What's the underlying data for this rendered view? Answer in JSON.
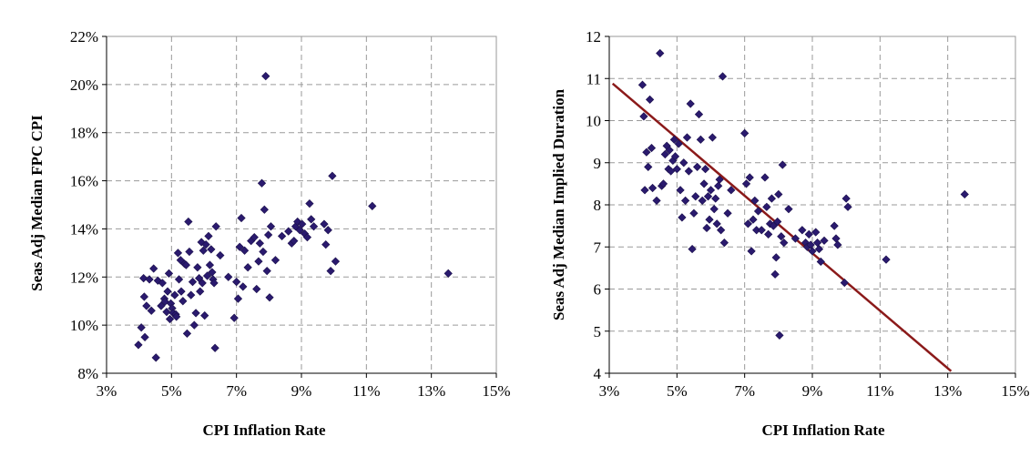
{
  "chart_data": [
    {
      "type": "scatter",
      "title": "",
      "xlabel": "CPI Inflation Rate",
      "ylabel": "Seas Adj Median FPC CPI",
      "xlim": [
        0.03,
        0.15
      ],
      "ylim": [
        0.08,
        0.22
      ],
      "xticks": [
        0.03,
        0.05,
        0.07,
        0.09,
        0.11,
        0.13,
        0.15
      ],
      "yticks": [
        0.08,
        0.1,
        0.12,
        0.14,
        0.16,
        0.18,
        0.2,
        0.22
      ],
      "xtick_labels": [
        "3%",
        "5%",
        "7%",
        "9%",
        "11%",
        "13%",
        "15%"
      ],
      "ytick_labels": [
        "8%",
        "10%",
        "12%",
        "14%",
        "16%",
        "18%",
        "20%",
        "22%"
      ],
      "grid": true,
      "marker_color": "#2a1a6e",
      "points": [
        [
          0.0398,
          0.0918
        ],
        [
          0.0407,
          0.099
        ],
        [
          0.0414,
          0.1195
        ],
        [
          0.0416,
          0.1118
        ],
        [
          0.0418,
          0.095
        ],
        [
          0.0423,
          0.108
        ],
        [
          0.0432,
          0.119
        ],
        [
          0.0438,
          0.106
        ],
        [
          0.0445,
          0.1235
        ],
        [
          0.0452,
          0.0865
        ],
        [
          0.0458,
          0.1185
        ],
        [
          0.0468,
          0.108
        ],
        [
          0.0472,
          0.1175
        ],
        [
          0.0478,
          0.111
        ],
        [
          0.048,
          0.1098
        ],
        [
          0.0485,
          0.1055
        ],
        [
          0.0488,
          0.114
        ],
        [
          0.0492,
          0.1215
        ],
        [
          0.0495,
          0.1025
        ],
        [
          0.0498,
          0.109
        ],
        [
          0.0502,
          0.107
        ],
        [
          0.0505,
          0.105
        ],
        [
          0.051,
          0.1125
        ],
        [
          0.0513,
          0.1045
        ],
        [
          0.0515,
          0.1035
        ],
        [
          0.052,
          0.13
        ],
        [
          0.0523,
          0.119
        ],
        [
          0.0528,
          0.127
        ],
        [
          0.053,
          0.114
        ],
        [
          0.0535,
          0.11
        ],
        [
          0.054,
          0.1255
        ],
        [
          0.0545,
          0.125
        ],
        [
          0.0548,
          0.0965
        ],
        [
          0.0552,
          0.143
        ],
        [
          0.0555,
          0.1305
        ],
        [
          0.056,
          0.1125
        ],
        [
          0.0565,
          0.118
        ],
        [
          0.057,
          0.1
        ],
        [
          0.0575,
          0.105
        ],
        [
          0.058,
          0.124
        ],
        [
          0.0585,
          0.1195
        ],
        [
          0.0588,
          0.114
        ],
        [
          0.0592,
          0.1345
        ],
        [
          0.0595,
          0.1175
        ],
        [
          0.0598,
          0.131
        ],
        [
          0.0602,
          0.104
        ],
        [
          0.0606,
          0.1335
        ],
        [
          0.061,
          0.1205
        ],
        [
          0.0614,
          0.137
        ],
        [
          0.0618,
          0.125
        ],
        [
          0.0622,
          0.1315
        ],
        [
          0.0625,
          0.122
        ],
        [
          0.0628,
          0.119
        ],
        [
          0.0631,
          0.1175
        ],
        [
          0.0634,
          0.0905
        ],
        [
          0.0637,
          0.141
        ],
        [
          0.065,
          0.129
        ],
        [
          0.0675,
          0.12
        ],
        [
          0.0693,
          0.103
        ],
        [
          0.07,
          0.118
        ],
        [
          0.0705,
          0.111
        ],
        [
          0.071,
          0.1325
        ],
        [
          0.0715,
          0.1445
        ],
        [
          0.072,
          0.116
        ],
        [
          0.0725,
          0.131
        ],
        [
          0.0735,
          0.124
        ],
        [
          0.0745,
          0.135
        ],
        [
          0.0755,
          0.1365
        ],
        [
          0.0762,
          0.115
        ],
        [
          0.0768,
          0.1265
        ],
        [
          0.0772,
          0.134
        ],
        [
          0.0778,
          0.159
        ],
        [
          0.0782,
          0.1305
        ],
        [
          0.0786,
          0.148
        ],
        [
          0.079,
          0.2035
        ],
        [
          0.0794,
          0.1225
        ],
        [
          0.0798,
          0.1375
        ],
        [
          0.0802,
          0.1115
        ],
        [
          0.0806,
          0.141
        ],
        [
          0.082,
          0.127
        ],
        [
          0.084,
          0.137
        ],
        [
          0.086,
          0.139
        ],
        [
          0.087,
          0.134
        ],
        [
          0.0877,
          0.135
        ],
        [
          0.0882,
          0.141
        ],
        [
          0.0888,
          0.143
        ],
        [
          0.0895,
          0.1395
        ],
        [
          0.0902,
          0.142
        ],
        [
          0.091,
          0.138
        ],
        [
          0.0918,
          0.1365
        ],
        [
          0.0925,
          0.1505
        ],
        [
          0.093,
          0.144
        ],
        [
          0.0938,
          0.141
        ],
        [
          0.097,
          0.142
        ],
        [
          0.0975,
          0.1335
        ],
        [
          0.0982,
          0.1395
        ],
        [
          0.099,
          0.1225
        ],
        [
          0.0995,
          0.162
        ],
        [
          0.1005,
          0.1265
        ],
        [
          0.1118,
          0.1495
        ],
        [
          0.1352,
          0.1215
        ]
      ]
    },
    {
      "type": "scatter",
      "title": "",
      "xlabel": "CPI Inflation Rate",
      "ylabel": "Seas Adj Median Implied Duration",
      "xlim": [
        0.03,
        0.15
      ],
      "ylim": [
        4,
        12
      ],
      "xticks": [
        0.03,
        0.05,
        0.07,
        0.09,
        0.11,
        0.13,
        0.15
      ],
      "yticks": [
        4,
        5,
        6,
        7,
        8,
        9,
        10,
        11,
        12
      ],
      "xtick_labels": [
        "3%",
        "5%",
        "7%",
        "9%",
        "11%",
        "13%",
        "15%"
      ],
      "ytick_labels": [
        "4",
        "5",
        "6",
        "7",
        "8",
        "9",
        "10",
        "11",
        "12"
      ],
      "grid": true,
      "marker_color": "#2a1a6e",
      "trendline": {
        "color": "#8b1a1a",
        "x": [
          0.031,
          0.131
        ],
        "y": [
          10.88,
          4.05
        ]
      },
      "points": [
        [
          0.0398,
          10.85
        ],
        [
          0.0402,
          10.1
        ],
        [
          0.0405,
          8.35
        ],
        [
          0.041,
          9.25
        ],
        [
          0.0415,
          8.9
        ],
        [
          0.042,
          10.5
        ],
        [
          0.0425,
          9.35
        ],
        [
          0.0428,
          8.4
        ],
        [
          0.044,
          8.1
        ],
        [
          0.045,
          11.6
        ],
        [
          0.0455,
          8.45
        ],
        [
          0.046,
          8.5
        ],
        [
          0.0465,
          9.2
        ],
        [
          0.047,
          9.4
        ],
        [
          0.0475,
          8.85
        ],
        [
          0.0478,
          9.3
        ],
        [
          0.0482,
          8.8
        ],
        [
          0.0488,
          9.05
        ],
        [
          0.0492,
          9.55
        ],
        [
          0.0495,
          9.15
        ],
        [
          0.05,
          8.85
        ],
        [
          0.0505,
          9.45
        ],
        [
          0.051,
          8.35
        ],
        [
          0.0515,
          7.7
        ],
        [
          0.052,
          9.0
        ],
        [
          0.0525,
          8.1
        ],
        [
          0.053,
          9.6
        ],
        [
          0.0535,
          8.8
        ],
        [
          0.054,
          10.4
        ],
        [
          0.0545,
          6.95
        ],
        [
          0.055,
          7.8
        ],
        [
          0.0555,
          8.2
        ],
        [
          0.056,
          8.9
        ],
        [
          0.0565,
          10.15
        ],
        [
          0.057,
          9.55
        ],
        [
          0.0575,
          8.1
        ],
        [
          0.058,
          8.5
        ],
        [
          0.0584,
          8.85
        ],
        [
          0.0588,
          7.45
        ],
        [
          0.0592,
          8.2
        ],
        [
          0.0596,
          7.65
        ],
        [
          0.06,
          8.35
        ],
        [
          0.0605,
          9.6
        ],
        [
          0.061,
          7.9
        ],
        [
          0.0614,
          8.15
        ],
        [
          0.0618,
          7.55
        ],
        [
          0.0622,
          8.45
        ],
        [
          0.0626,
          8.6
        ],
        [
          0.063,
          7.4
        ],
        [
          0.0635,
          11.05
        ],
        [
          0.064,
          7.1
        ],
        [
          0.065,
          7.8
        ],
        [
          0.066,
          8.35
        ],
        [
          0.07,
          9.7
        ],
        [
          0.0705,
          8.5
        ],
        [
          0.071,
          7.55
        ],
        [
          0.0715,
          8.65
        ],
        [
          0.072,
          6.9
        ],
        [
          0.0725,
          7.65
        ],
        [
          0.073,
          8.1
        ],
        [
          0.0735,
          7.4
        ],
        [
          0.074,
          7.85
        ],
        [
          0.075,
          7.4
        ],
        [
          0.076,
          8.65
        ],
        [
          0.0765,
          7.95
        ],
        [
          0.077,
          7.3
        ],
        [
          0.0775,
          7.55
        ],
        [
          0.078,
          8.15
        ],
        [
          0.0785,
          7.5
        ],
        [
          0.079,
          6.35
        ],
        [
          0.0793,
          6.75
        ],
        [
          0.0797,
          7.6
        ],
        [
          0.08,
          8.25
        ],
        [
          0.0803,
          4.9
        ],
        [
          0.0808,
          7.25
        ],
        [
          0.0812,
          8.95
        ],
        [
          0.0816,
          7.1
        ],
        [
          0.083,
          7.9
        ],
        [
          0.085,
          7.2
        ],
        [
          0.087,
          7.4
        ],
        [
          0.088,
          7.1
        ],
        [
          0.0885,
          7.0
        ],
        [
          0.089,
          7.3
        ],
        [
          0.0895,
          7.05
        ],
        [
          0.09,
          6.9
        ],
        [
          0.091,
          7.35
        ],
        [
          0.0915,
          7.1
        ],
        [
          0.092,
          6.95
        ],
        [
          0.0925,
          6.65
        ],
        [
          0.0935,
          7.15
        ],
        [
          0.0965,
          7.5
        ],
        [
          0.097,
          7.2
        ],
        [
          0.0975,
          7.05
        ],
        [
          0.0995,
          6.15
        ],
        [
          0.1,
          8.15
        ],
        [
          0.1005,
          7.95
        ],
        [
          0.1118,
          6.7
        ],
        [
          0.135,
          8.25
        ]
      ]
    }
  ]
}
